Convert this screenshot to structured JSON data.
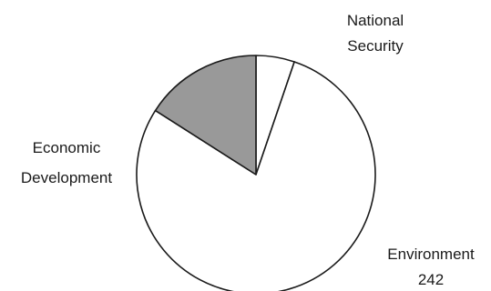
{
  "chart_data": {
    "type": "pie",
    "slices": [
      {
        "label_lines": [
          "National",
          "Security"
        ],
        "value": 16,
        "color": "#ffffff"
      },
      {
        "label_lines": [
          "Environment",
          "242"
        ],
        "value": 242,
        "color": "#ffffff"
      },
      {
        "label_lines": [
          "Economic",
          "Development"
        ],
        "value": 49,
        "color": "#999999"
      }
    ],
    "value_unit": "relative",
    "start_angle_deg": 0,
    "direction": "clockwise",
    "legend": "none",
    "edge_color": "#1a1a1a"
  }
}
